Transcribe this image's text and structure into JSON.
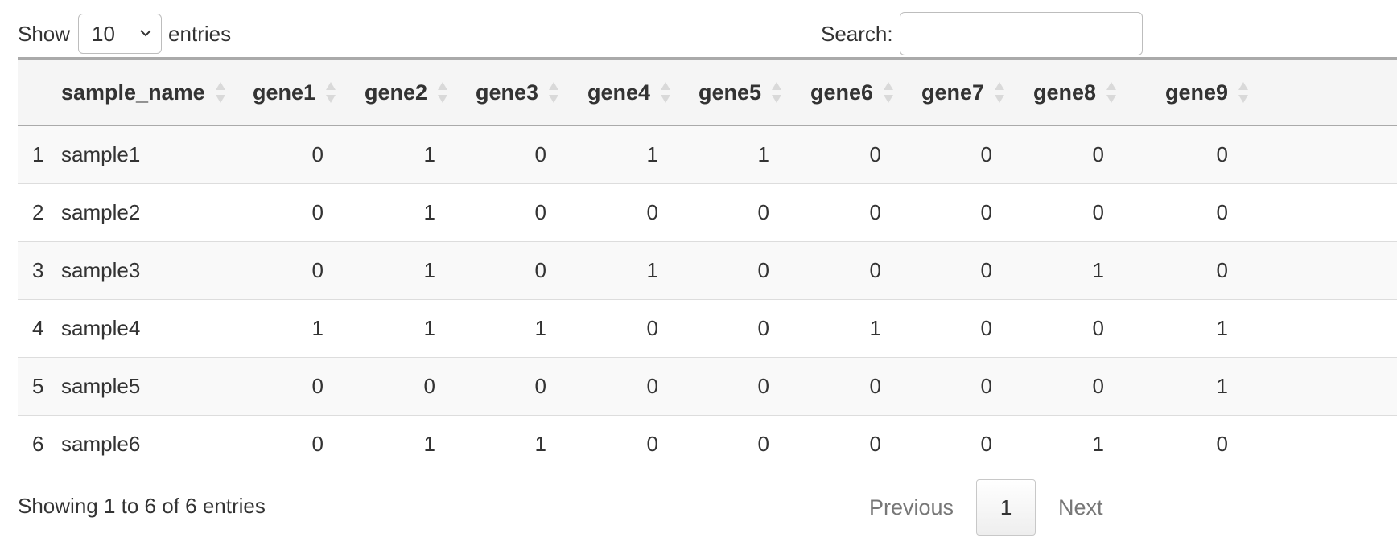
{
  "length_control": {
    "prefix": "Show",
    "selected": "10",
    "suffix": "entries"
  },
  "search": {
    "label": "Search:",
    "value": "",
    "placeholder": ""
  },
  "table": {
    "columns": [
      "",
      "sample_name",
      "gene1",
      "gene2",
      "gene3",
      "gene4",
      "gene5",
      "gene6",
      "gene7",
      "gene8",
      "gene9"
    ],
    "rows": [
      [
        "1",
        "sample1",
        "0",
        "1",
        "0",
        "1",
        "1",
        "0",
        "0",
        "0",
        "0"
      ],
      [
        "2",
        "sample2",
        "0",
        "1",
        "0",
        "0",
        "0",
        "0",
        "0",
        "0",
        "0"
      ],
      [
        "3",
        "sample3",
        "0",
        "1",
        "0",
        "1",
        "0",
        "0",
        "0",
        "1",
        "0"
      ],
      [
        "4",
        "sample4",
        "1",
        "1",
        "1",
        "0",
        "0",
        "1",
        "0",
        "0",
        "1"
      ],
      [
        "5",
        "sample5",
        "0",
        "0",
        "0",
        "0",
        "0",
        "0",
        "0",
        "0",
        "1"
      ],
      [
        "6",
        "sample6",
        "0",
        "1",
        "1",
        "0",
        "0",
        "0",
        "0",
        "1",
        "0"
      ]
    ]
  },
  "info": "Showing 1 to 6 of 6 entries",
  "pagination": {
    "previous": "Previous",
    "current": "1",
    "next": "Next"
  },
  "icons": {
    "sort": "sort-both-icon",
    "select": "chevron-down-icon"
  },
  "colors": {
    "header_bg": "#f5f5f5",
    "odd_row_bg": "#f9f9f9",
    "border": "#aaaaaa",
    "text": "#333333",
    "muted": "#777777"
  }
}
